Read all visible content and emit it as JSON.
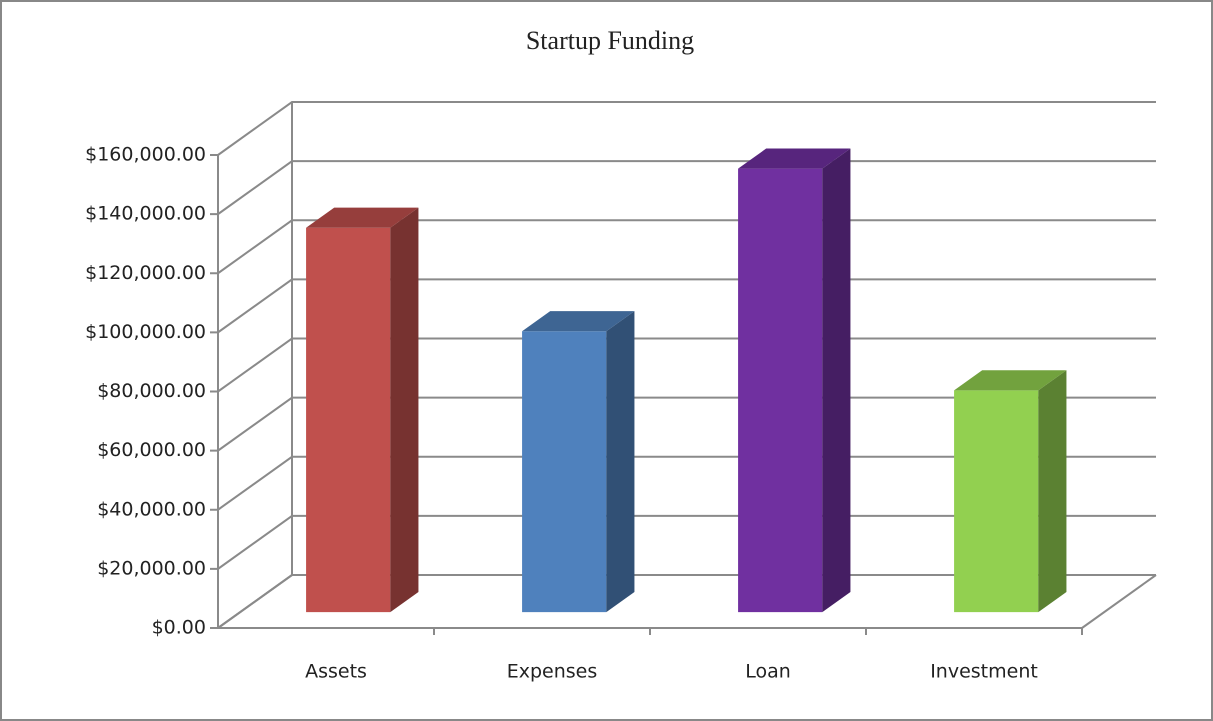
{
  "chart_data": {
    "type": "bar3d",
    "title": "Startup Funding",
    "categories": [
      "Assets",
      "Expenses",
      "Loan",
      "Investment"
    ],
    "values": [
      130000,
      95000,
      150000,
      75000
    ],
    "colors": [
      "#c0504d",
      "#4f81bd",
      "#7030a0",
      "#92d050"
    ],
    "ylim": [
      0,
      160000
    ],
    "yticks": [
      {
        "value": 0,
        "label": "$0.00"
      },
      {
        "value": 20000,
        "label": "$20,000.00"
      },
      {
        "value": 40000,
        "label": "$40,000.00"
      },
      {
        "value": 60000,
        "label": "$60,000.00"
      },
      {
        "value": 80000,
        "label": "$80,000.00"
      },
      {
        "value": 100000,
        "label": "$100,000.00"
      },
      {
        "value": 120000,
        "label": "$120,000.00"
      },
      {
        "value": 140000,
        "label": "$140,000.00"
      },
      {
        "value": 160000,
        "label": "$160,000.00"
      }
    ],
    "grid": true
  }
}
